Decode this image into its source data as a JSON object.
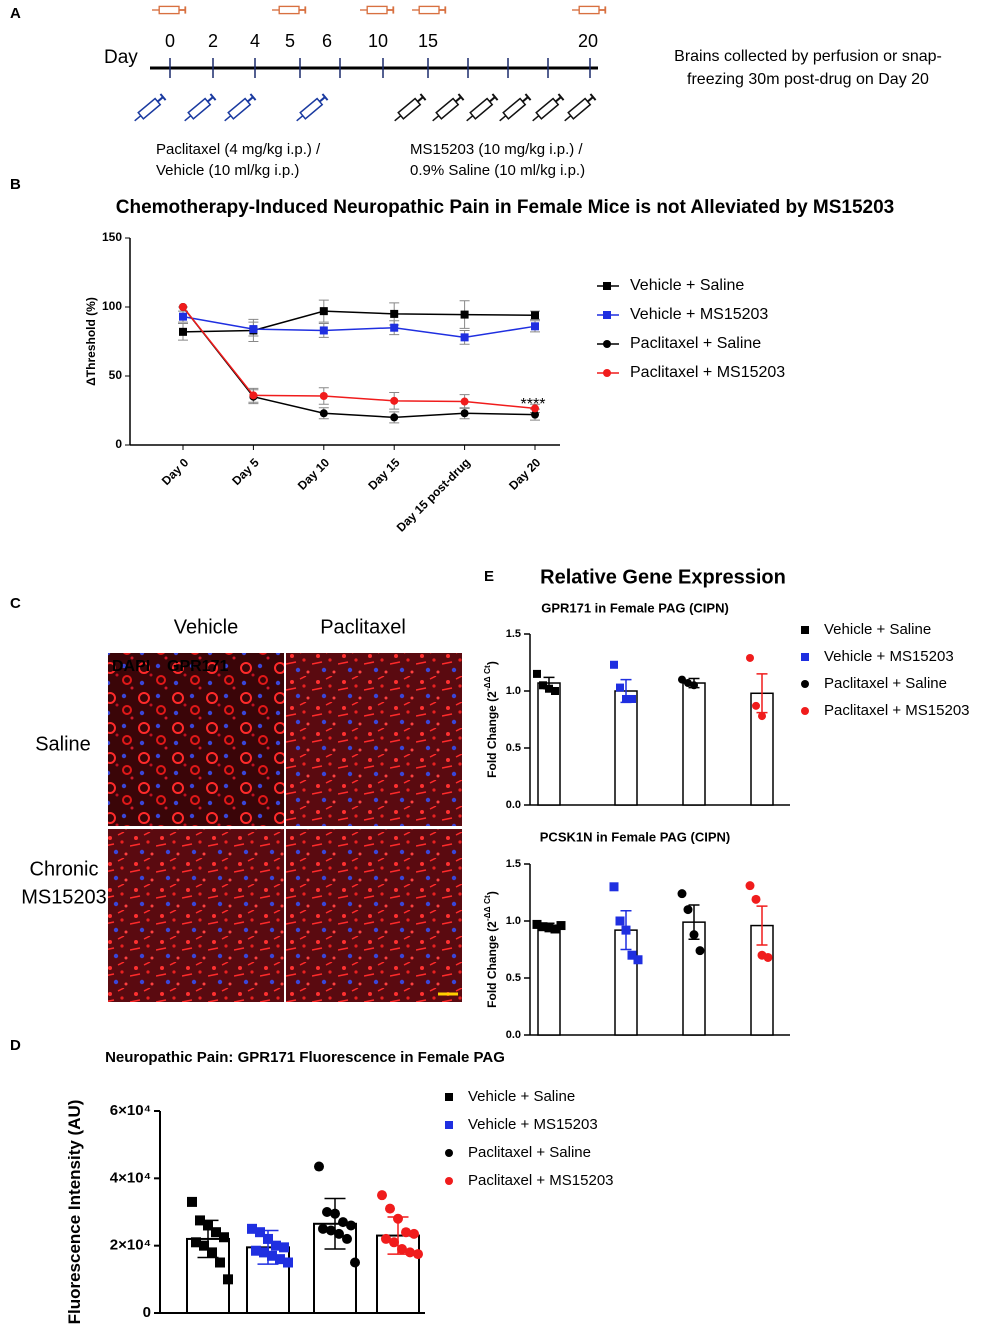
{
  "panel_labels": [
    "A",
    "B",
    "C",
    "D",
    "E"
  ],
  "timeline": {
    "day_label": "Day",
    "days": [
      "0",
      "2",
      "4",
      "5",
      "6",
      "10",
      "15",
      "20"
    ],
    "note": [
      "Brains collected by perfusion or snap-",
      "freezing 30m post-drug on Day 20"
    ],
    "treatment_1": [
      "Paclitaxel (4 mg/kg i.p.) /",
      "Vehicle (10 ml/kg i.p.)"
    ],
    "treatment_2": [
      "MS15203 (10 mg/kg i.p.) /",
      "0.9% Saline (10 ml/kg i.p.)"
    ]
  },
  "images": {
    "columns": [
      "Vehicle",
      "Paclitaxel"
    ],
    "rows": [
      [
        "Saline"
      ],
      [
        "Chronic",
        "MS15203"
      ]
    ],
    "stain_1": "DAPI",
    "stain_2": "GPR171"
  },
  "panel_e_title": "Relative Gene Expression",
  "chart_data": [
    {
      "type": "line",
      "title": "Chemotherapy-Induced Neuropathic Pain in Female Mice is not Alleviated by MS15203",
      "ylabel": "ΔThreshold (%)",
      "categories": [
        "Day 0",
        "Day 5",
        "Day 10",
        "Day 15",
        "Day 15 post-drug",
        "Day 20"
      ],
      "ylim": [
        0,
        150
      ],
      "yticks": [
        0,
        50,
        100,
        150
      ],
      "annotation": "****",
      "legend": true,
      "series": [
        {
          "name": "Vehicle + Saline",
          "color": "#000000",
          "marker": "square",
          "values": [
            82,
            83,
            97,
            95,
            94.5,
            94
          ],
          "errors": [
            6,
            8,
            8,
            8,
            10,
            3
          ]
        },
        {
          "name": "Vehicle + MS15203",
          "color": "#1f2fe0",
          "marker": "square",
          "values": [
            93,
            84,
            83,
            85,
            78,
            86
          ],
          "errors": [
            4,
            5,
            5,
            5,
            5,
            4
          ]
        },
        {
          "name": "Paclitaxel + Saline",
          "color": "#000000",
          "marker": "circle",
          "values": [
            100,
            35,
            23,
            20,
            23,
            22
          ],
          "errors": [
            0,
            5,
            4,
            4,
            4,
            4
          ]
        },
        {
          "name": "Paclitaxel + MS15203",
          "color": "#f01c1c",
          "marker": "circle",
          "values": [
            100,
            36,
            35.5,
            32,
            31.5,
            26.5
          ],
          "errors": [
            0,
            5,
            6,
            6,
            5,
            3
          ]
        }
      ]
    },
    {
      "type": "bar",
      "title": "GPR171 in Female PAG (CIPN)",
      "ylabel": "Fold Change (2",
      "ylabel_superscript": "-ΔΔ Ct",
      "ylabel_suffix": ")",
      "ylim": [
        0,
        1.5
      ],
      "yticks": [
        {
          "value": 0,
          "label": "0.0"
        },
        0.5,
        {
          "value": 1,
          "label": "1.0"
        },
        1.5
      ],
      "legend": true,
      "series": [
        {
          "name": "Vehicle + Saline",
          "color": "#000000",
          "marker": "square",
          "value": 1.07,
          "error": 0.05,
          "points": [
            1.15,
            1.05,
            1.02,
            1.0
          ]
        },
        {
          "name": "Vehicle + MS15203",
          "color": "#1f2fe0",
          "marker": "square",
          "value": 1.0,
          "error": 0.1,
          "points": [
            1.23,
            1.03,
            0.93,
            0.93
          ]
        },
        {
          "name": "Paclitaxel + Saline",
          "color": "#000000",
          "marker": "circle",
          "value": 1.07,
          "error": 0.04,
          "points": [
            1.1,
            1.07,
            1.05
          ]
        },
        {
          "name": "Paclitaxel + MS15203",
          "color": "#f01c1c",
          "marker": "circle",
          "value": 0.98,
          "error": 0.17,
          "points": [
            1.29,
            0.87,
            0.78
          ]
        }
      ]
    },
    {
      "type": "bar",
      "title": "PCSK1N in Female PAG (CIPN)",
      "ylabel": "Fold Change (2",
      "ylabel_superscript": "-ΔΔ Ct",
      "ylabel_suffix": ")",
      "ylim": [
        0,
        1.5
      ],
      "yticks": [
        {
          "value": 0,
          "label": "0.0"
        },
        0.5,
        {
          "value": 1,
          "label": "1.0"
        },
        1.5
      ],
      "legend": false,
      "series": [
        {
          "color": "#000000",
          "marker": "square",
          "value": 0.95,
          "error": 0.03,
          "points": [
            0.97,
            0.95,
            0.94,
            0.93,
            0.96
          ]
        },
        {
          "color": "#1f2fe0",
          "marker": "square",
          "value": 0.92,
          "error": 0.17,
          "points": [
            1.3,
            1.0,
            0.92,
            0.7,
            0.66
          ]
        },
        {
          "color": "#000000",
          "marker": "circle",
          "value": 0.99,
          "error": 0.15,
          "points": [
            1.24,
            1.1,
            0.88,
            0.74
          ]
        },
        {
          "color": "#f01c1c",
          "marker": "circle",
          "value": 0.96,
          "error": 0.17,
          "points": [
            1.31,
            1.19,
            0.7,
            0.68
          ]
        }
      ]
    },
    {
      "type": "bar",
      "title": "Neuropathic Pain: GPR171 Fluorescence in Female PAG",
      "ylabel": "Fluorescence Intensity (AU)",
      "ylim": [
        0,
        60000
      ],
      "yticks": [
        0,
        {
          "value": 20000,
          "label": "2×10⁴"
        },
        {
          "value": 40000,
          "label": "4×10⁴"
        },
        {
          "value": 60000,
          "label": "6×10⁴"
        }
      ],
      "legend": true,
      "series": [
        {
          "name": "Vehicle + Saline",
          "color": "#000000",
          "marker": "square",
          "value": 22000,
          "error": 5500,
          "points": [
            33000,
            27500,
            26000,
            24000,
            22500,
            21000,
            20000,
            18000,
            15000,
            10000
          ]
        },
        {
          "name": "Vehicle + MS15203",
          "color": "#1f2fe0",
          "marker": "square",
          "value": 19500,
          "error": 5000,
          "points": [
            25000,
            24000,
            22000,
            20000,
            19500,
            18500,
            18000,
            17000,
            16000,
            15000
          ]
        },
        {
          "name": "Paclitaxel + Saline",
          "color": "#000000",
          "marker": "circle",
          "value": 26500,
          "error": 7500,
          "points": [
            43500,
            30000,
            29500,
            27000,
            26000,
            25000,
            24500,
            23500,
            22000,
            15000
          ]
        },
        {
          "name": "Paclitaxel + MS15203",
          "color": "#f01c1c",
          "marker": "circle",
          "value": 23000,
          "error": 5500,
          "points": [
            35000,
            31000,
            28000,
            24000,
            23500,
            22000,
            21000,
            19000,
            18000,
            17500
          ]
        }
      ]
    }
  ]
}
